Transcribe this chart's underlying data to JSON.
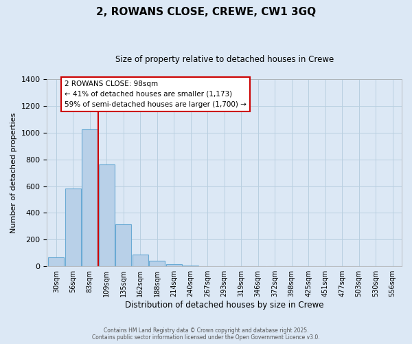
{
  "title": "2, ROWANS CLOSE, CREWE, CW1 3GQ",
  "subtitle": "Size of property relative to detached houses in Crewe",
  "xlabel": "Distribution of detached houses by size in Crewe",
  "ylabel": "Number of detached properties",
  "bar_labels": [
    "30sqm",
    "56sqm",
    "83sqm",
    "109sqm",
    "135sqm",
    "162sqm",
    "188sqm",
    "214sqm",
    "240sqm",
    "267sqm",
    "293sqm",
    "319sqm",
    "346sqm",
    "372sqm",
    "398sqm",
    "425sqm",
    "451sqm",
    "477sqm",
    "503sqm",
    "530sqm",
    "556sqm"
  ],
  "bar_values": [
    68,
    580,
    1025,
    760,
    315,
    90,
    40,
    18,
    5,
    0,
    0,
    0,
    0,
    0,
    0,
    0,
    0,
    0,
    0,
    0,
    0
  ],
  "bar_color": "#b8d0e8",
  "bar_edge_color": "#6aaad4",
  "background_color": "#dce8f5",
  "grid_color": "#b8cfe0",
  "vline_color": "#cc0000",
  "annotation_line1": "2 ROWANS CLOSE: 98sqm",
  "annotation_line2": "← 41% of detached houses are smaller (1,173)",
  "annotation_line3": "59% of semi-detached houses are larger (1,700) →",
  "annotation_box_color": "#ffffff",
  "annotation_box_edge": "#cc0000",
  "ylim": [
    0,
    1400
  ],
  "yticks": [
    0,
    200,
    400,
    600,
    800,
    1000,
    1200,
    1400
  ],
  "footer_line1": "Contains HM Land Registry data © Crown copyright and database right 2025.",
  "footer_line2": "Contains public sector information licensed under the Open Government Licence v3.0."
}
